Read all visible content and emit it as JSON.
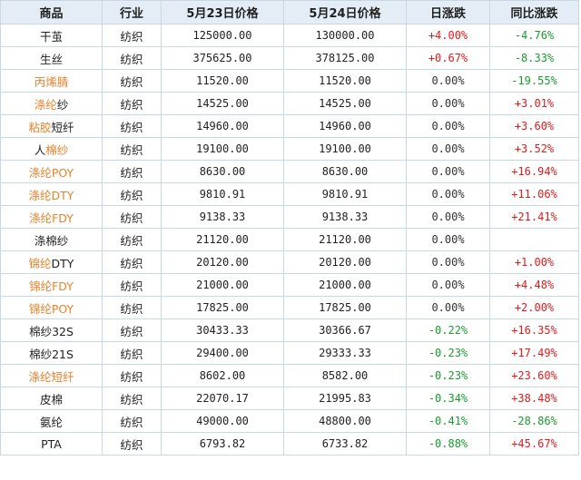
{
  "headers": [
    "商品",
    "行业",
    "5月23日价格",
    "5月24日价格",
    "日涨跌",
    "同比涨跌"
  ],
  "colors": {
    "header_bg": "#e4edf6",
    "border": "#c9d6e3",
    "up": "#e01b1b",
    "down": "#1b9a2e",
    "link_orange": "#e8822a"
  },
  "rows": [
    {
      "name_parts": [
        {
          "text": "干茧",
          "link": false
        }
      ],
      "industry": "纺织",
      "price_0523": "125000.00",
      "price_0524": "130000.00",
      "daily_change": "+4.00%",
      "daily_dir": "pos",
      "yoy_change": "-4.76%",
      "yoy_dir": "neg"
    },
    {
      "name_parts": [
        {
          "text": "生丝",
          "link": false
        }
      ],
      "industry": "纺织",
      "price_0523": "375625.00",
      "price_0524": "378125.00",
      "daily_change": "+0.67%",
      "daily_dir": "pos",
      "yoy_change": "-8.33%",
      "yoy_dir": "neg"
    },
    {
      "name_parts": [
        {
          "text": "丙烯腈",
          "link": true
        }
      ],
      "industry": "纺织",
      "price_0523": "11520.00",
      "price_0524": "11520.00",
      "daily_change": "0.00%",
      "daily_dir": "zero",
      "yoy_change": "-19.55%",
      "yoy_dir": "neg"
    },
    {
      "name_parts": [
        {
          "text": "涤纶",
          "link": true
        },
        {
          "text": "纱",
          "link": false
        }
      ],
      "industry": "纺织",
      "price_0523": "14525.00",
      "price_0524": "14525.00",
      "daily_change": "0.00%",
      "daily_dir": "zero",
      "yoy_change": "+3.01%",
      "yoy_dir": "pos"
    },
    {
      "name_parts": [
        {
          "text": "粘胶",
          "link": true
        },
        {
          "text": "短纤",
          "link": false
        }
      ],
      "industry": "纺织",
      "price_0523": "14960.00",
      "price_0524": "14960.00",
      "daily_change": "0.00%",
      "daily_dir": "zero",
      "yoy_change": "+3.60%",
      "yoy_dir": "pos"
    },
    {
      "name_parts": [
        {
          "text": "人",
          "link": false
        },
        {
          "text": "棉纱",
          "link": true
        }
      ],
      "industry": "纺织",
      "price_0523": "19100.00",
      "price_0524": "19100.00",
      "daily_change": "0.00%",
      "daily_dir": "zero",
      "yoy_change": "+3.52%",
      "yoy_dir": "pos"
    },
    {
      "name_parts": [
        {
          "text": "涤纶POY",
          "link": true
        }
      ],
      "industry": "纺织",
      "price_0523": "8630.00",
      "price_0524": "8630.00",
      "daily_change": "0.00%",
      "daily_dir": "zero",
      "yoy_change": "+16.94%",
      "yoy_dir": "pos"
    },
    {
      "name_parts": [
        {
          "text": "涤纶DTY",
          "link": true
        }
      ],
      "industry": "纺织",
      "price_0523": "9810.91",
      "price_0524": "9810.91",
      "daily_change": "0.00%",
      "daily_dir": "zero",
      "yoy_change": "+11.06%",
      "yoy_dir": "pos"
    },
    {
      "name_parts": [
        {
          "text": "涤纶FDY",
          "link": true
        }
      ],
      "industry": "纺织",
      "price_0523": "9138.33",
      "price_0524": "9138.33",
      "daily_change": "0.00%",
      "daily_dir": "zero",
      "yoy_change": "+21.41%",
      "yoy_dir": "pos"
    },
    {
      "name_parts": [
        {
          "text": "涤棉纱",
          "link": false
        }
      ],
      "industry": "纺织",
      "price_0523": "21120.00",
      "price_0524": "21120.00",
      "daily_change": "0.00%",
      "daily_dir": "zero",
      "yoy_change": "",
      "yoy_dir": "zero"
    },
    {
      "name_parts": [
        {
          "text": "锦纶",
          "link": true
        },
        {
          "text": "DTY",
          "link": false
        }
      ],
      "industry": "纺织",
      "price_0523": "20120.00",
      "price_0524": "20120.00",
      "daily_change": "0.00%",
      "daily_dir": "zero",
      "yoy_change": "+1.00%",
      "yoy_dir": "pos"
    },
    {
      "name_parts": [
        {
          "text": "锦纶FDY",
          "link": true
        }
      ],
      "industry": "纺织",
      "price_0523": "21000.00",
      "price_0524": "21000.00",
      "daily_change": "0.00%",
      "daily_dir": "zero",
      "yoy_change": "+4.48%",
      "yoy_dir": "pos"
    },
    {
      "name_parts": [
        {
          "text": "锦纶POY",
          "link": true
        }
      ],
      "industry": "纺织",
      "price_0523": "17825.00",
      "price_0524": "17825.00",
      "daily_change": "0.00%",
      "daily_dir": "zero",
      "yoy_change": "+2.00%",
      "yoy_dir": "pos"
    },
    {
      "name_parts": [
        {
          "text": "棉纱32S",
          "link": false
        }
      ],
      "industry": "纺织",
      "price_0523": "30433.33",
      "price_0524": "30366.67",
      "daily_change": "-0.22%",
      "daily_dir": "neg",
      "yoy_change": "+16.35%",
      "yoy_dir": "pos"
    },
    {
      "name_parts": [
        {
          "text": "棉纱21S",
          "link": false
        }
      ],
      "industry": "纺织",
      "price_0523": "29400.00",
      "price_0524": "29333.33",
      "daily_change": "-0.23%",
      "daily_dir": "neg",
      "yoy_change": "+17.49%",
      "yoy_dir": "pos"
    },
    {
      "name_parts": [
        {
          "text": "涤纶短纤",
          "link": true
        }
      ],
      "industry": "纺织",
      "price_0523": "8602.00",
      "price_0524": "8582.00",
      "daily_change": "-0.23%",
      "daily_dir": "neg",
      "yoy_change": "+23.60%",
      "yoy_dir": "pos"
    },
    {
      "name_parts": [
        {
          "text": "皮棉",
          "link": false
        }
      ],
      "industry": "纺织",
      "price_0523": "22070.17",
      "price_0524": "21995.83",
      "daily_change": "-0.34%",
      "daily_dir": "neg",
      "yoy_change": "+38.48%",
      "yoy_dir": "pos"
    },
    {
      "name_parts": [
        {
          "text": "氨纶",
          "link": false
        }
      ],
      "industry": "纺织",
      "price_0523": "49000.00",
      "price_0524": "48800.00",
      "daily_change": "-0.41%",
      "daily_dir": "neg",
      "yoy_change": "-28.86%",
      "yoy_dir": "neg"
    },
    {
      "name_parts": [
        {
          "text": "PTA",
          "link": false
        }
      ],
      "industry": "纺织",
      "price_0523": "6793.82",
      "price_0524": "6733.82",
      "daily_change": "-0.88%",
      "daily_dir": "neg",
      "yoy_change": "+45.67%",
      "yoy_dir": "pos"
    }
  ]
}
